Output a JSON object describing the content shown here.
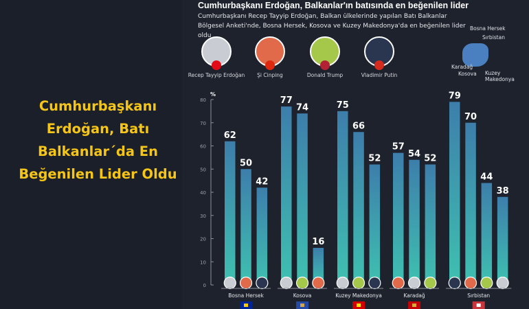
{
  "headline": "Cumhurbaşkanı Erdoğan, Batı Balkanlar´da En Beğenilen Lider Oldu",
  "title": "Cumhurbaşkanı Erdoğan, Balkanlar'ın batısında en beğenilen lider",
  "subtitle": "Cumhurbaşkanı Recep Tayyip Erdoğan, Balkan ülkelerinde yapılan Batı Balkanlar Bölgesel Anketi'nde, Bosna Hersek, Kosova ve Kuzey Makedonya'da en beğenilen lider oldu",
  "leaders": [
    {
      "name": "Recep Tayyip Erdoğan",
      "color": "#c9ccd2",
      "flag": "#e30a17"
    },
    {
      "name": "Şi Cinping",
      "color": "#e06a4a",
      "flag": "#de2910"
    },
    {
      "name": "Donald Trump",
      "color": "#a6c84a",
      "flag": "#b22234"
    },
    {
      "name": "Vladimir Putin",
      "color": "#2a3550",
      "flag": "#d52b1e"
    }
  ],
  "map_labels": [
    "Bosna Hersek",
    "Sırbistan",
    "Karadağ",
    "Kosova",
    "Kuzey Makedonya"
  ],
  "colors": {
    "bar_top": "#3d7eab",
    "bar_bottom": "#3fc1b0",
    "headline": "#f5c518"
  },
  "chart_data": {
    "type": "bar",
    "ylabel": "%",
    "ylim": [
      0,
      80
    ],
    "yticks": [
      0,
      10,
      20,
      30,
      40,
      50,
      60,
      70,
      80
    ],
    "grid": false,
    "groups": [
      {
        "category": "Bosna Hersek",
        "bars": [
          {
            "leader": "Recep Tayyip Erdoğan",
            "value": 62
          },
          {
            "leader": "Şi Cinping",
            "value": 50
          },
          {
            "leader": "Vladimir Putin",
            "value": 42
          }
        ]
      },
      {
        "category": "Kosova",
        "bars": [
          {
            "leader": "Recep Tayyip Erdoğan",
            "value": 77
          },
          {
            "leader": "Donald Trump",
            "value": 74
          },
          {
            "leader": "Şi Cinping",
            "value": 16
          }
        ]
      },
      {
        "category": "Kuzey Makedonya",
        "bars": [
          {
            "leader": "Recep Tayyip Erdoğan",
            "value": 75
          },
          {
            "leader": "Donald Trump",
            "value": 66
          },
          {
            "leader": "Vladimir Putin",
            "value": 52
          }
        ]
      },
      {
        "category": "Karadağ",
        "bars": [
          {
            "leader": "Şi Cinping",
            "value": 57
          },
          {
            "leader": "Recep Tayyip Erdoğan",
            "value": 54
          },
          {
            "leader": "Donald Trump",
            "value": 52
          }
        ]
      },
      {
        "category": "Sırbistan",
        "bars": [
          {
            "leader": "Vladimir Putin",
            "value": 79
          },
          {
            "leader": "Şi Cinping",
            "value": 70
          },
          {
            "leader": "Donald Trump",
            "value": 44
          },
          {
            "leader": "Recep Tayyip Erdoğan",
            "value": 38
          }
        ]
      }
    ]
  }
}
